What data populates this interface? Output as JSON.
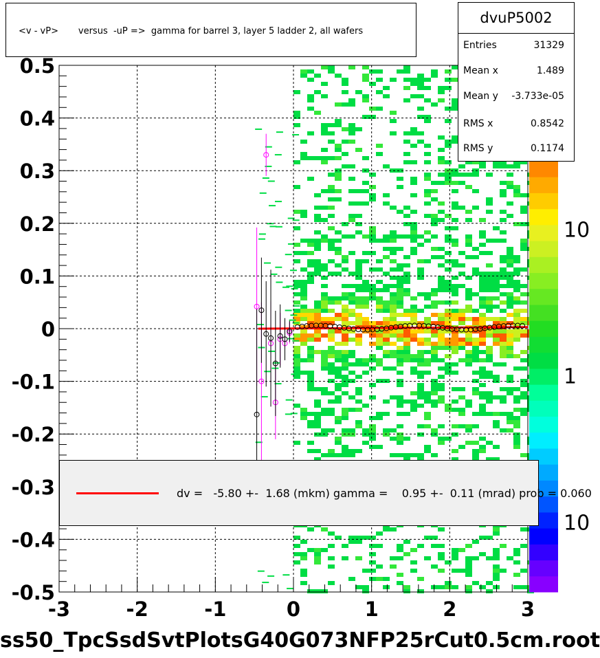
{
  "title": "<v - vP>       versus  -uP =>  gamma for barrel 3, layer 5 ladder 2, all wafers",
  "stats": {
    "name": "dvuP5002",
    "rows": [
      {
        "label": "Entries",
        "value": "31329"
      },
      {
        "label": "Mean x",
        "value": "1.489"
      },
      {
        "label": "Mean y",
        "value": "-3.733e-05"
      },
      {
        "label": "RMS x",
        "value": "0.8542"
      },
      {
        "label": "RMS y",
        "value": "0.1174"
      }
    ]
  },
  "legend": {
    "text": "dv =   -5.80 +-  1.68 (mkm) gamma =    0.95 +-  0.11 (mrad) prob = 0.060",
    "line_color": "#ff0000"
  },
  "footer": "ss50_TpcSsdSvtPlotsG40G073NFP25rCut0.5cm.root",
  "colors": {
    "fit": "#ff0000",
    "profile_black": "#000000",
    "profile_magenta": "#ff00ff",
    "fill_main": "#00dd44"
  },
  "chart_data": {
    "type": "heatmap",
    "xlim": [
      -3,
      3
    ],
    "ylim": [
      -0.5,
      0.5
    ],
    "x_ticks": [
      "-3",
      "-2",
      "-1",
      "0",
      "1",
      "2",
      "3"
    ],
    "y_ticks": [
      "-0.5",
      "-0.4",
      "-0.3",
      "-0.2",
      "-0.1",
      "0",
      "0.1",
      "0.2",
      "0.3",
      "0.4",
      "0.5"
    ],
    "grid": true,
    "colorbar_labels": [
      {
        "text": "10",
        "frac": 0.16
      },
      {
        "text": "1",
        "frac": 0.5
      },
      {
        "text": "10",
        "frac": 0.84
      }
    ],
    "fit_line": {
      "x": [
        -0.45,
        3
      ],
      "y": [
        0.0,
        0.003
      ]
    },
    "profile_black": [
      {
        "x": -0.47,
        "y": -0.163,
        "err": 0.2
      },
      {
        "x": -0.41,
        "y": 0.035,
        "err": 0.1
      },
      {
        "x": -0.35,
        "y": -0.01,
        "err": 0.1
      },
      {
        "x": -0.29,
        "y": -0.018,
        "err": 0.13
      },
      {
        "x": -0.23,
        "y": -0.066,
        "err": 0.1
      },
      {
        "x": -0.17,
        "y": -0.014,
        "err": 0.06
      },
      {
        "x": -0.11,
        "y": -0.02,
        "err": 0.04
      },
      {
        "x": -0.05,
        "y": -0.005,
        "err": 0.02
      }
    ],
    "profile_magenta": [
      {
        "x": -0.47,
        "y": 0.042,
        "err": 0.15
      },
      {
        "x": -0.41,
        "y": -0.1,
        "err": 0.15
      },
      {
        "x": -0.35,
        "y": 0.33,
        "err": 0.04
      },
      {
        "x": -0.29,
        "y": -0.028,
        "err": 0.08
      },
      {
        "x": -0.23,
        "y": -0.14,
        "err": 0.07
      },
      {
        "x": -0.17,
        "y": -0.02,
        "err": 0.05
      },
      {
        "x": -0.11,
        "y": -0.028,
        "err": 0.03
      },
      {
        "x": -0.05,
        "y": -0.008,
        "err": 0.02
      }
    ]
  }
}
